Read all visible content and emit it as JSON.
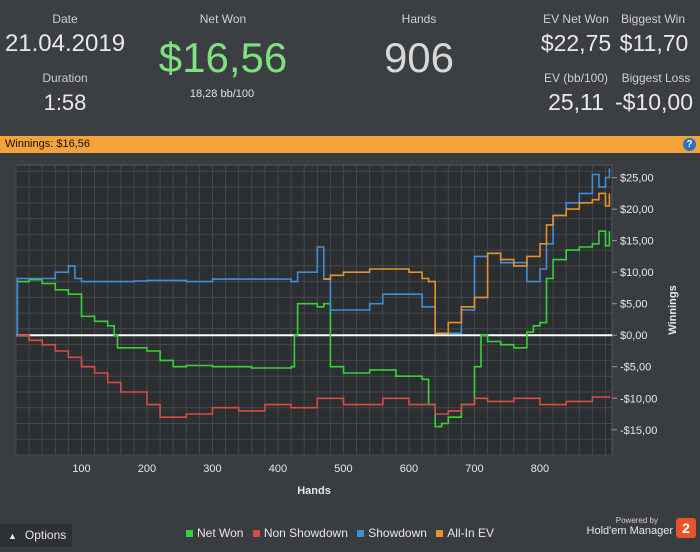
{
  "stats": {
    "date_label": "Date",
    "date_value": "21.04.2019",
    "duration_label": "Duration",
    "duration_value": "1:58",
    "netwon_label": "Net Won",
    "netwon_value": "$16,56",
    "bb_value": "18,28 bb/100",
    "hands_label": "Hands",
    "hands_value": "906",
    "ev_net_label": "EV Net Won",
    "ev_net_value": "$22,75",
    "biggest_win_label": "Biggest Win",
    "biggest_win_value": "$11,70",
    "ev_bb_label": "EV (bb/100)",
    "ev_bb_value": "25,11",
    "biggest_loss_label": "Biggest Loss",
    "biggest_loss_value": "-$10,00"
  },
  "banner": {
    "label": "Winnings: $16,56",
    "help": "?"
  },
  "footer": {
    "options_label": "Options",
    "powered_by": "Powered by",
    "brand": "Hold'em Manager",
    "brand_num": "2"
  },
  "colors": {
    "net_won": "#38d13a",
    "non_showdown": "#d94c43",
    "showdown": "#3f8fd8",
    "allin_ev": "#e8912c",
    "netwon_big": "#7fe07f",
    "banner": "#f3a33a"
  },
  "chart_data": {
    "type": "line",
    "xlabel": "Hands",
    "ylabel": "Winnings",
    "xlim": [
      0,
      910
    ],
    "ylim": [
      -19,
      27
    ],
    "xticks": [
      100,
      200,
      300,
      400,
      500,
      600,
      700,
      800
    ],
    "yticks": [
      25,
      20,
      15,
      10,
      5,
      0,
      -5,
      -10,
      -15
    ],
    "ytick_labels": [
      "$25,00",
      "$20,00",
      "$15,00",
      "$10,00",
      "$5,00",
      "$0,00",
      "-$5,00",
      "-$10,00",
      "-$15,00"
    ],
    "grid": true,
    "legend": "bottom",
    "series": [
      {
        "name": "Net Won",
        "color": "#38d13a",
        "x": [
          0,
          2,
          10,
          20,
          40,
          60,
          80,
          100,
          120,
          140,
          150,
          155,
          200,
          220,
          240,
          260,
          300,
          360,
          420,
          425,
          430,
          460,
          470,
          480,
          500,
          540,
          580,
          620,
          630,
          640,
          650,
          660,
          680,
          700,
          710,
          720,
          740,
          760,
          780,
          790,
          800,
          810,
          820,
          840,
          860,
          880,
          890,
          900,
          906
        ],
        "y": [
          0,
          8.5,
          8.5,
          8.8,
          8.2,
          7.2,
          6.5,
          3,
          2.2,
          1.5,
          0,
          -2,
          -2.5,
          -4,
          -5,
          -4.8,
          -5,
          -5.2,
          -5,
          0,
          5,
          4.5,
          5,
          -5,
          -6,
          -5.5,
          -6.5,
          -7,
          -11,
          -14.5,
          -14,
          -13,
          -11,
          -5,
          0,
          -1,
          -1.5,
          -2,
          0.5,
          1.5,
          2,
          9,
          12,
          13.5,
          14,
          14.5,
          16.5,
          14.2,
          16.5
        ]
      },
      {
        "name": "Non Showdown",
        "color": "#d94c43",
        "x": [
          0,
          20,
          40,
          60,
          80,
          100,
          120,
          140,
          160,
          200,
          220,
          260,
          300,
          340,
          380,
          420,
          460,
          500,
          560,
          600,
          640,
          660,
          680,
          700,
          720,
          760,
          800,
          840,
          880,
          906
        ],
        "y": [
          0,
          -0.8,
          -1.5,
          -2.5,
          -3.5,
          -5,
          -6,
          -7.5,
          -9,
          -11,
          -13,
          -12.5,
          -11.5,
          -12,
          -11,
          -11.5,
          -10,
          -11,
          -10,
          -11,
          -12.5,
          -12,
          -11,
          -10,
          -10.5,
          -10,
          -11,
          -10.5,
          -9.8,
          -10
        ]
      },
      {
        "name": "Showdown",
        "color": "#3f8fd8",
        "x": [
          0,
          2,
          40,
          60,
          80,
          90,
          100,
          120,
          180,
          200,
          260,
          300,
          420,
          430,
          460,
          470,
          480,
          500,
          540,
          560,
          620,
          630,
          640,
          680,
          700,
          720,
          740,
          780,
          800,
          810,
          820,
          840,
          860,
          880,
          890,
          900,
          906
        ],
        "y": [
          0,
          9,
          9,
          10,
          11,
          9,
          8.5,
          8.5,
          8.6,
          8.7,
          8.5,
          8.9,
          8.5,
          10,
          14,
          8.9,
          4,
          4,
          5,
          6.5,
          4.5,
          4.5,
          0.3,
          4,
          12.5,
          13,
          11.5,
          8.5,
          10.5,
          14.5,
          19,
          21,
          22.5,
          25.5,
          23.5,
          25,
          26.5
        ]
      },
      {
        "name": "All-In EV",
        "color": "#e8912c",
        "x": [
          470,
          480,
          500,
          540,
          560,
          600,
          620,
          630,
          640,
          660,
          680,
          700,
          720,
          740,
          760,
          780,
          800,
          810,
          820,
          840,
          860,
          880,
          890,
          900,
          906
        ],
        "y": [
          8.9,
          9.5,
          10,
          10.5,
          10.5,
          10,
          9,
          8.5,
          0.3,
          2,
          4.5,
          6,
          13,
          12,
          11,
          12.5,
          14.5,
          17.5,
          19,
          20,
          21,
          21.5,
          22.5,
          20.5,
          22.5
        ]
      }
    ]
  }
}
